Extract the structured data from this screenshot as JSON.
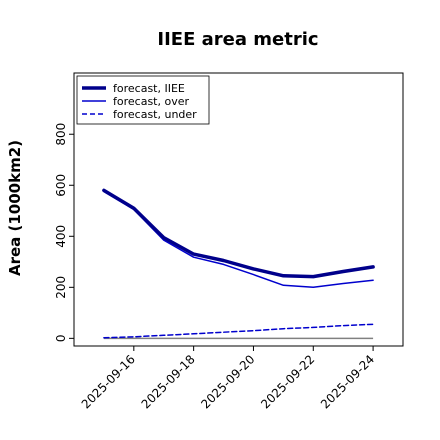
{
  "chart_data": {
    "type": "line",
    "title": "IIEE area metric",
    "xlabel": "",
    "ylabel": "Area (1000km2)",
    "x": [
      "2025-09-15",
      "2025-09-16",
      "2025-09-17",
      "2025-09-18",
      "2025-09-19",
      "2025-09-20",
      "2025-09-21",
      "2025-09-22",
      "2025-09-23",
      "2025-09-24"
    ],
    "x_tick_labels": [
      "2025-09-16",
      "2025-09-18",
      "2025-09-20",
      "2025-09-22",
      "2025-09-24"
    ],
    "x_tick_colors": [
      "#228B22",
      "#000000",
      "#000000",
      "#000000",
      "#000000"
    ],
    "xlim": [
      "2025-09-14",
      "2025-09-25"
    ],
    "y_ticks": [
      0,
      200,
      400,
      600,
      800
    ],
    "ylim": [
      -30,
      1040
    ],
    "grid": false,
    "legend_position": "top-left",
    "series": [
      {
        "name": "forecast, IIEE",
        "color": "#00008B",
        "style": "solid-thick",
        "values": [
          580,
          510,
          395,
          330,
          305,
          272,
          245,
          242,
          262,
          280
        ]
      },
      {
        "name": "forecast, over",
        "color": "#0000CD",
        "style": "solid",
        "values": [
          575,
          505,
          385,
          318,
          290,
          250,
          208,
          200,
          215,
          228
        ]
      },
      {
        "name": "forecast, under",
        "color": "#0000CD",
        "style": "dashed",
        "values": [
          2,
          6,
          12,
          18,
          24,
          30,
          38,
          43,
          50,
          55
        ]
      }
    ],
    "reference_line": {
      "y": 0,
      "color": "#808080"
    }
  }
}
